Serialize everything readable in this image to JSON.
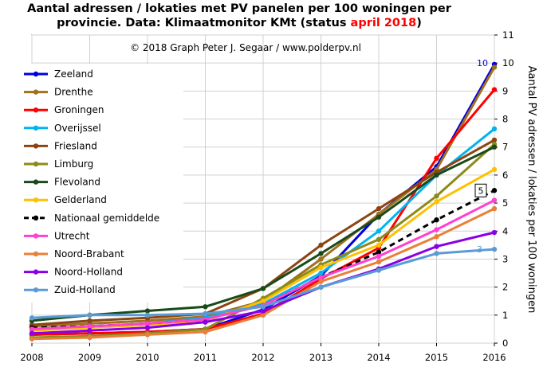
{
  "title": {
    "line1": "Aantal adressen / lokaties met PV panelen per 100 woningen per",
    "line2_prefix": "provincie.  Data: Klimaatmonitor KMt (status ",
    "line2_highlight": "april 2018",
    "line2_suffix": ")",
    "highlight_color": "#ff0000"
  },
  "chart_data": {
    "type": "line",
    "copyright": "© 2018  Graph  Peter  J. Segaar  /  www.polderpv.nl",
    "ylabel": "Aantal PV adressen / lokaties per 100 woningen",
    "x": [
      2008,
      2009,
      2010,
      2011,
      2012,
      2013,
      2014,
      2015,
      2016
    ],
    "xlim": [
      2008,
      2016
    ],
    "ylim": [
      0,
      11
    ],
    "yticks": [
      0,
      1,
      2,
      3,
      4,
      5,
      6,
      7,
      8,
      9,
      10,
      11
    ],
    "grid": true,
    "legend_position": "top-left",
    "series": [
      {
        "name": "Zeeland",
        "color": "#0000dd",
        "dashed": false,
        "values": [
          0.3,
          0.35,
          0.4,
          0.5,
          1.2,
          2.4,
          4.6,
          6.3,
          9.95
        ]
      },
      {
        "name": "Drenthe",
        "color": "#a0701c",
        "dashed": false,
        "values": [
          0.6,
          0.7,
          0.8,
          0.95,
          1.5,
          3.0,
          4.6,
          6.2,
          9.85
        ]
      },
      {
        "name": "Groningen",
        "color": "#ff0000",
        "dashed": false,
        "values": [
          0.3,
          0.35,
          0.4,
          0.5,
          1.05,
          2.3,
          3.4,
          6.6,
          9.05
        ]
      },
      {
        "name": "Overijssel",
        "color": "#00b4f0",
        "dashed": false,
        "values": [
          0.5,
          0.6,
          0.7,
          0.9,
          1.4,
          2.5,
          4.0,
          6.0,
          7.65
        ]
      },
      {
        "name": "Friesland",
        "color": "#8b4513",
        "dashed": false,
        "values": [
          0.65,
          0.8,
          0.9,
          1.05,
          1.95,
          3.5,
          4.8,
          6.1,
          7.25
        ]
      },
      {
        "name": "Limburg",
        "color": "#8b8b1a",
        "dashed": false,
        "values": [
          0.2,
          0.25,
          0.35,
          0.5,
          1.6,
          2.8,
          3.7,
          5.25,
          7.1
        ]
      },
      {
        "name": "Flevoland",
        "color": "#1a4a1a",
        "dashed": false,
        "values": [
          0.8,
          1.0,
          1.15,
          1.3,
          1.95,
          3.2,
          4.5,
          6.0,
          7.0
        ]
      },
      {
        "name": "Gelderland",
        "color": "#ffc000",
        "dashed": false,
        "values": [
          0.45,
          0.55,
          0.65,
          0.8,
          1.5,
          2.7,
          3.5,
          5.05,
          6.2
        ]
      },
      {
        "name": "Nationaal gemiddelde",
        "color": "#000000",
        "dashed": true,
        "values": [
          0.55,
          0.6,
          0.7,
          0.85,
          1.35,
          2.35,
          3.25,
          4.4,
          5.45
        ]
      },
      {
        "name": "Utrecht",
        "color": "#ff40d0",
        "dashed": false,
        "values": [
          0.5,
          0.6,
          0.7,
          0.85,
          1.35,
          2.35,
          3.1,
          4.05,
          5.1
        ]
      },
      {
        "name": "Noord-Brabant",
        "color": "#e8803a",
        "dashed": false,
        "values": [
          0.15,
          0.2,
          0.3,
          0.4,
          1.0,
          2.2,
          2.9,
          3.8,
          4.8
        ]
      },
      {
        "name": "Noord-Holland",
        "color": "#8a00e6",
        "dashed": false,
        "values": [
          0.35,
          0.45,
          0.55,
          0.75,
          1.15,
          2.0,
          2.65,
          3.45,
          3.95
        ]
      },
      {
        "name": "Zuid-Holland",
        "color": "#5b9bd5",
        "dashed": false,
        "values": [
          0.9,
          1.0,
          1.0,
          1.05,
          1.3,
          2.0,
          2.6,
          3.2,
          3.35
        ]
      }
    ],
    "end_labels": [
      {
        "text": "10",
        "color": "#0000dd",
        "value": 10,
        "boxed": false
      },
      {
        "text": "5",
        "color": "#000000",
        "value": 5.45,
        "boxed": true
      },
      {
        "text": "3",
        "color": "#5b9bd5",
        "value": 3.35,
        "boxed": false
      }
    ]
  }
}
